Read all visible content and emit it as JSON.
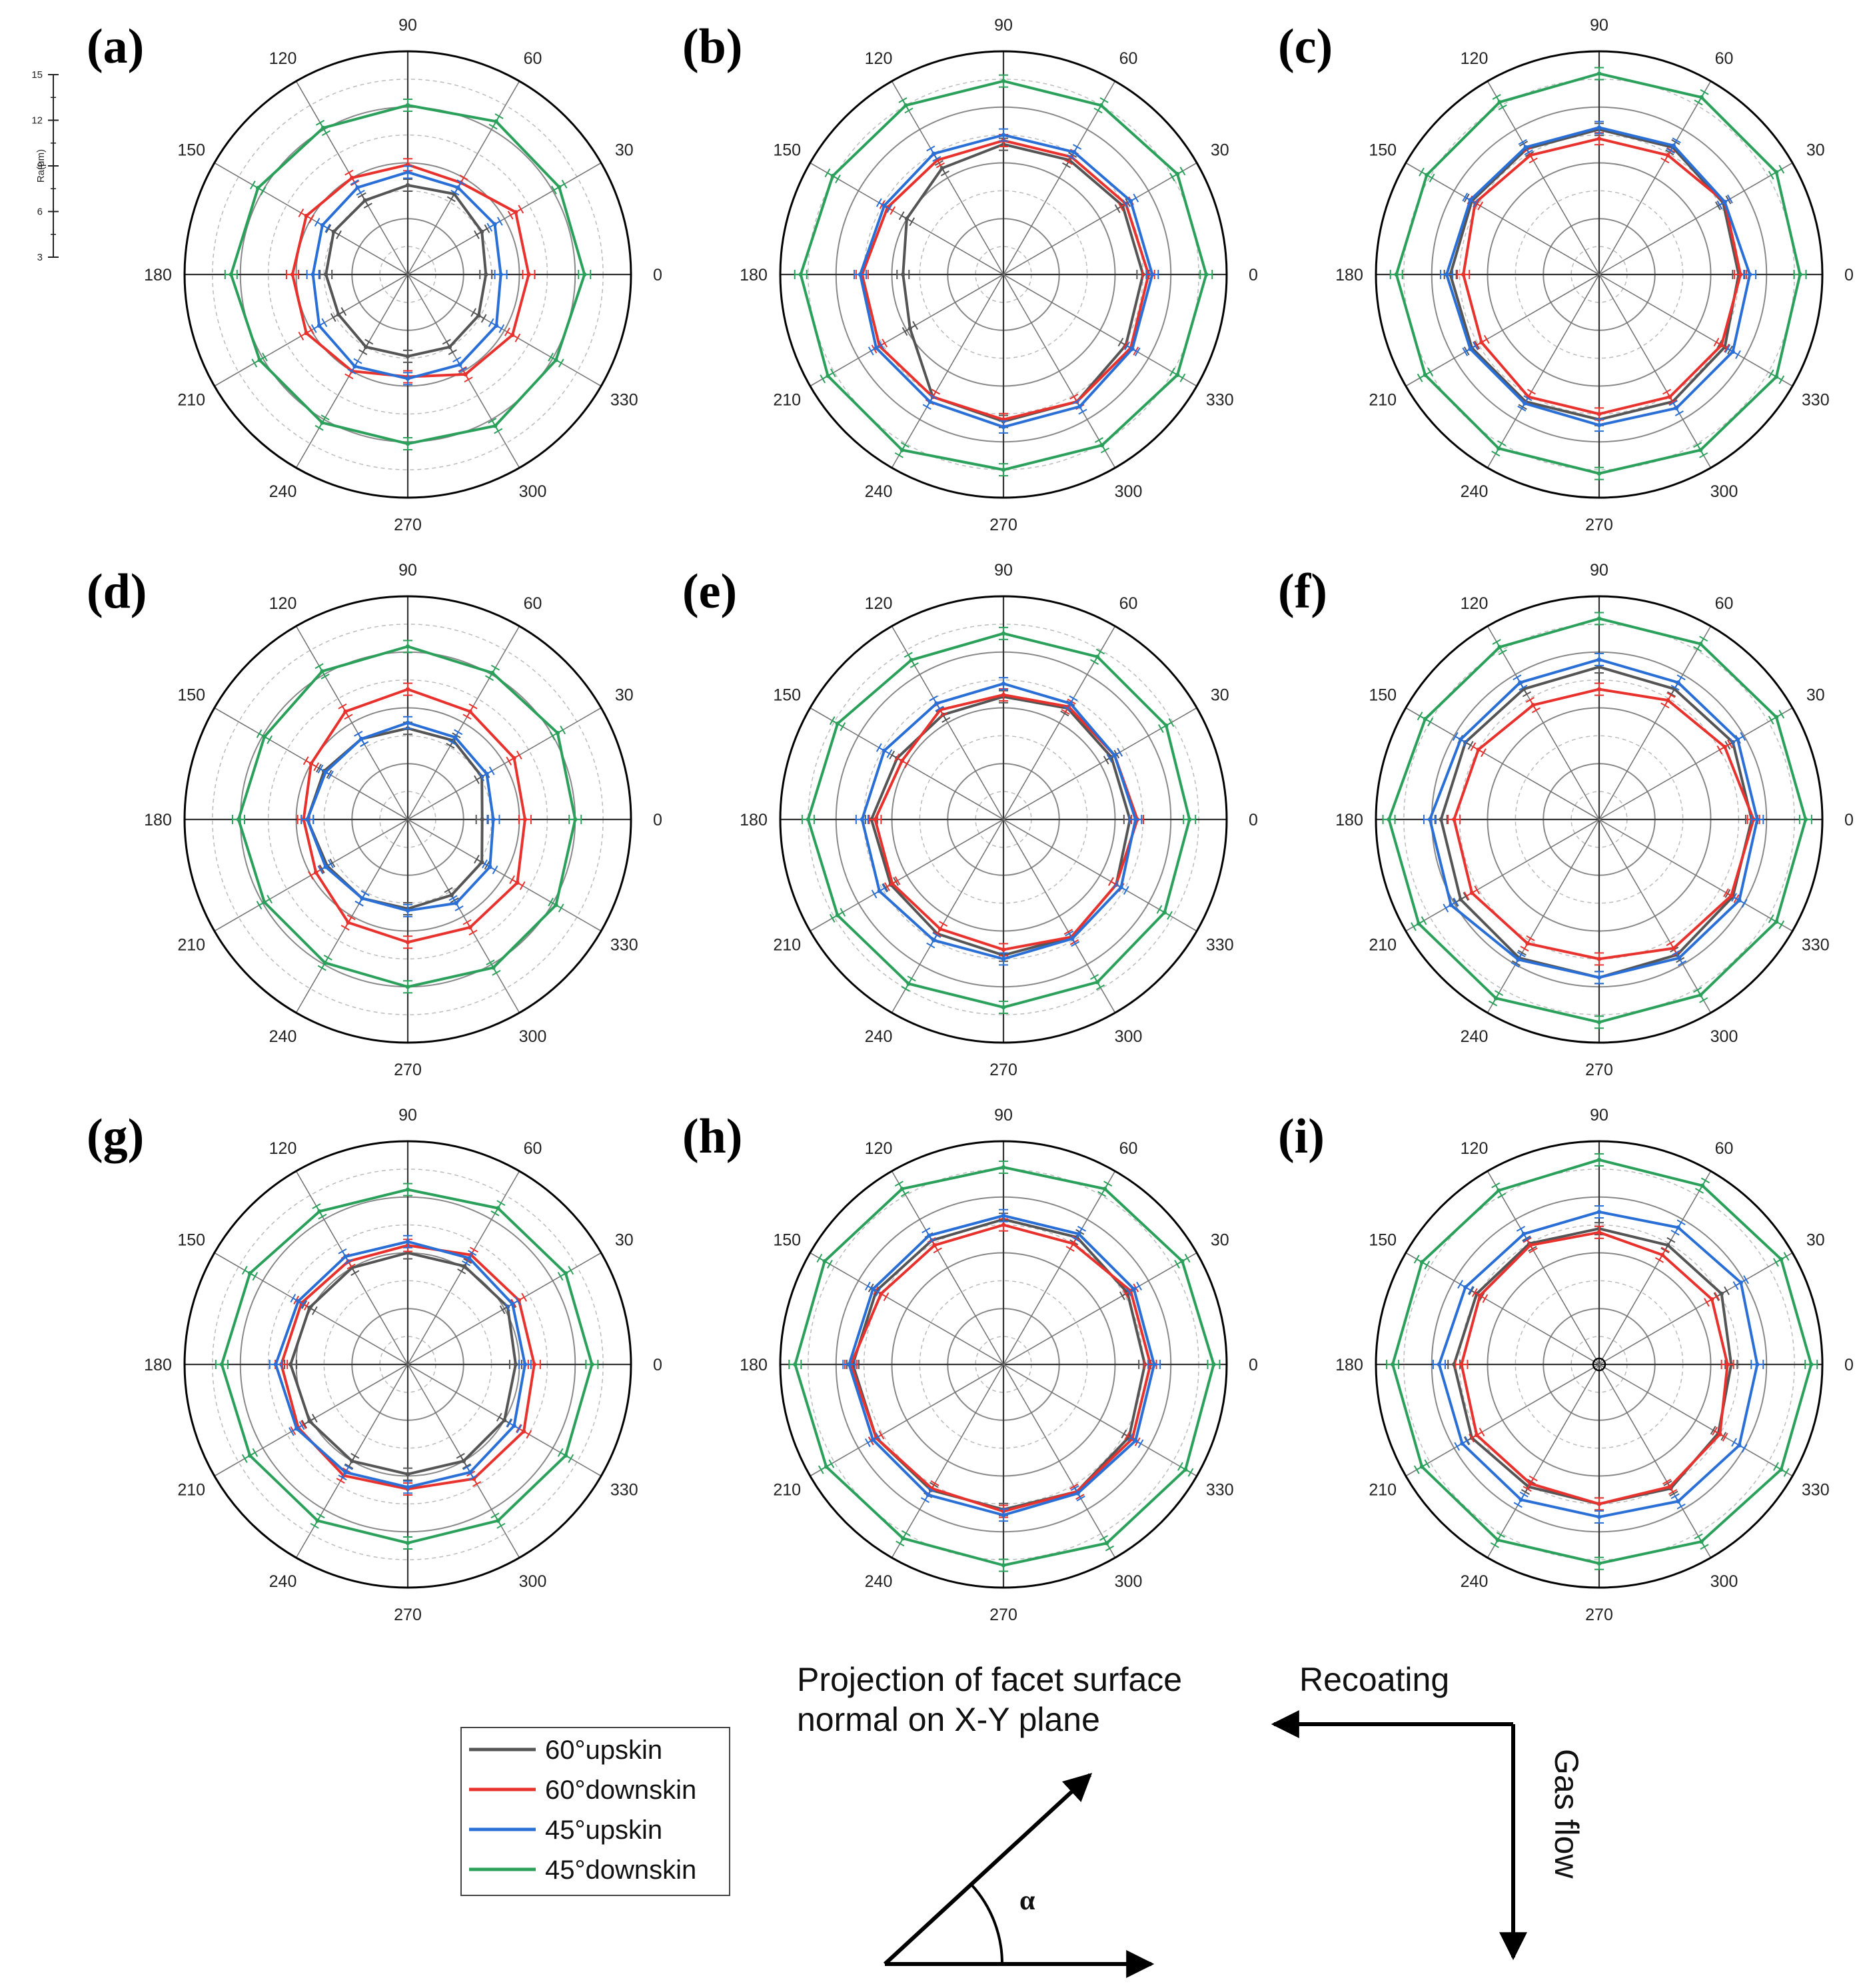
{
  "chart_data": {
    "type": "polar-line",
    "radial_axis": {
      "label": "Ra(μm)",
      "ticks": [
        3,
        6,
        9,
        12,
        15
      ],
      "range": [
        3,
        15
      ]
    },
    "angular_axis": {
      "ticks": [
        0,
        30,
        60,
        90,
        120,
        150,
        180,
        210,
        240,
        270,
        300,
        330
      ]
    },
    "angles": [
      0,
      30,
      60,
      90,
      120,
      150,
      180,
      210,
      240,
      270,
      300,
      330
    ],
    "legend": {
      "placement": "bottom-left",
      "entries": [
        {
          "label": "60°upskin",
          "color": "#555555"
        },
        {
          "label": "60°downskin",
          "color": "#e8322e"
        },
        {
          "label": "45°upskin",
          "color": "#2a6fd6"
        },
        {
          "label": "45°downskin",
          "color": "#2aa05a"
        }
      ]
    },
    "panels": [
      {
        "label": "(a)",
        "series": [
          {
            "name": "60°upskin",
            "values": [
              7.2,
              7.6,
              8.0,
              7.8,
              7.6,
              7.6,
              7.4,
              7.3,
              7.5,
              7.4,
              7.5,
              7.4
            ]
          },
          {
            "name": "60°downskin",
            "values": [
              9.5,
              9.7,
              8.7,
              8.9,
              9.0,
              9.3,
              9.2,
              9.3,
              9.0,
              8.5,
              9.2,
              9.5
            ]
          },
          {
            "name": "45°upskin",
            "values": [
              8.0,
              8.4,
              8.4,
              8.5,
              8.4,
              8.3,
              8.1,
              8.5,
              8.7,
              8.6,
              8.6,
              8.5
            ]
          },
          {
            "name": "45°downskin",
            "values": [
              12.5,
              12.4,
              12.5,
              12.1,
              12.1,
              12.3,
              12.5,
              12.2,
              12.2,
              12.1,
              12.4,
              12.2
            ]
          }
        ]
      },
      {
        "label": "(b)",
        "series": [
          {
            "name": "60°upskin",
            "values": [
              10.5,
              10.4,
              10.1,
              10.0,
              9.6,
              9.0,
              8.4,
              8.8,
              10.6,
              10.9,
              10.9,
              10.6
            ]
          },
          {
            "name": "60°downskin",
            "values": [
              10.8,
              10.6,
              10.3,
              10.2,
              10.1,
              10.2,
              10.6,
              10.7,
              10.6,
              10.8,
              10.9,
              10.9
            ]
          },
          {
            "name": "45°upskin",
            "values": [
              11.0,
              10.9,
              10.6,
              10.5,
              10.5,
              10.4,
              10.7,
              10.9,
              10.9,
              11.2,
              11.2,
              11.0
            ]
          },
          {
            "name": "45°downskin",
            "values": [
              13.9,
              13.8,
              13.5,
              13.4,
              13.5,
              13.6,
              13.9,
              13.9,
              13.9,
              13.5,
              13.6,
              13.8
            ]
          }
        ]
      },
      {
        "label": "(c)",
        "series": [
          {
            "name": "60°upskin",
            "values": [
              10.5,
              10.7,
              10.9,
              10.8,
              10.8,
              10.9,
              11.0,
              10.9,
              10.9,
              10.8,
              10.9,
              10.8
            ]
          },
          {
            "name": "60°downskin",
            "values": [
              10.6,
              10.8,
              10.4,
              10.3,
              10.4,
              10.7,
              10.3,
              10.3,
              10.6,
              10.5,
              10.6,
              10.6
            ]
          },
          {
            "name": "45°upskin",
            "values": [
              11.1,
              10.8,
              11.0,
              10.9,
              10.9,
              11.0,
              11.2,
              11.0,
              11.0,
              11.1,
              11.3,
              11.3
            ]
          },
          {
            "name": "45°downskin",
            "values": [
              13.8,
              14.0,
              14.0,
              13.8,
              13.7,
              13.7,
              13.9,
              13.8,
              13.8,
              13.7,
              13.9,
              14.0
            ]
          }
        ]
      },
      {
        "label": "(d)",
        "series": [
          {
            "name": "60°upskin",
            "values": [
              7.0,
              7.6,
              7.9,
              7.9,
              8.0,
              8.2,
              8.4,
              8.0,
              7.9,
              7.8,
              7.7,
              7.6
            ]
          },
          {
            "name": "60°downskin",
            "values": [
              9.3,
              9.6,
              9.7,
              10.0,
              9.7,
              9.0,
              8.6,
              8.7,
              9.4,
              9.6,
              9.7,
              9.8
            ]
          },
          {
            "name": "45°upskin",
            "values": [
              7.6,
              7.9,
              8.1,
              8.2,
              8.0,
              8.1,
              8.4,
              8.1,
              7.9,
              7.9,
              8.2,
              8.1
            ]
          },
          {
            "name": "45°downskin",
            "values": [
              12.0,
              12.3,
              12.1,
              12.3,
              12.2,
              11.9,
              12.1,
              11.9,
              11.9,
              12.0,
              12.2,
              12.2
            ]
          }
        ]
      },
      {
        "label": "(e)",
        "series": [
          {
            "name": "60°upskin",
            "values": [
              9.8,
              9.7,
              9.9,
              9.6,
              9.5,
              9.6,
              10.1,
              10.0,
              10.1,
              10.3,
              10.3,
              10.0
            ]
          },
          {
            "name": "60°downskin",
            "values": [
              10.2,
              9.9,
              10.0,
              9.7,
              9.8,
              9.3,
              9.9,
              9.9,
              9.8,
              10.0,
              10.3,
              10.0
            ]
          },
          {
            "name": "45°upskin",
            "values": [
              10.1,
              9.9,
              10.2,
              10.3,
              10.2,
              10.4,
              10.6,
              10.7,
              10.5,
              10.5,
              10.4,
              10.3
            ]
          },
          {
            "name": "45°downskin",
            "values": [
              13.0,
              13.1,
              13.1,
              13.0,
              12.9,
              13.3,
              13.5,
              13.3,
              13.2,
              13.1,
              13.1,
              13.0
            ]
          }
        ]
      },
      {
        "label": "(f)",
        "series": [
          {
            "name": "60°upskin",
            "values": [
              11.2,
              11.3,
              11.1,
              11.2,
              11.1,
              11.3,
              11.5,
              11.6,
              11.6,
              11.5,
              11.4,
              11.3
            ]
          },
          {
            "name": "60°downskin",
            "values": [
              11.3,
              10.8,
              10.4,
              10.0,
              10.1,
              10.5,
              10.8,
              10.9,
              10.7,
              10.5,
              11.0,
              11.2
            ]
          },
          {
            "name": "45°upskin",
            "values": [
              11.5,
              11.6,
              11.5,
              11.6,
              11.5,
              11.6,
              12.1,
              12.2,
              11.7,
              11.5,
              11.6,
              11.7
            ]
          },
          {
            "name": "45°downskin",
            "values": [
              14.1,
              14.0,
              13.9,
              13.8,
              13.7,
              13.8,
              14.3,
              14.2,
              14.1,
              13.9,
              13.9,
              14.0
            ]
          }
        ]
      },
      {
        "label": "(g)",
        "series": [
          {
            "name": "60°upskin",
            "values": [
              8.8,
              9.2,
              9.1,
              9.0,
              9.0,
              9.1,
              9.3,
              9.1,
              9.0,
              8.9,
              9.0,
              9.0
            ]
          },
          {
            "name": "60°downskin",
            "values": [
              9.8,
              9.9,
              9.8,
              9.4,
              9.4,
              9.6,
              9.8,
              9.8,
              9.9,
              9.7,
              10.1,
              10.2
            ]
          },
          {
            "name": "45°upskin",
            "values": [
              9.3,
              9.5,
              9.6,
              9.6,
              9.7,
              9.8,
              10.1,
              9.9,
              9.7,
              9.6,
              9.7,
              9.6
            ]
          },
          {
            "name": "45°downskin",
            "values": [
              12.9,
              12.8,
              12.7,
              12.4,
              12.5,
              12.8,
              13.0,
              12.8,
              12.7,
              12.6,
              12.7,
              12.8
            ]
          }
        ]
      },
      {
        "label": "(h)",
        "series": [
          {
            "name": "60°upskin",
            "values": [
              10.6,
              10.7,
              10.9,
              10.8,
              10.7,
              10.9,
              11.1,
              10.9,
              10.8,
              10.8,
              10.9,
              10.8
            ]
          },
          {
            "name": "60°downskin",
            "values": [
              10.9,
              10.9,
              10.5,
              10.5,
              10.4,
              10.6,
              11.2,
              10.9,
              10.7,
              10.9,
              10.9,
              11.0
            ]
          },
          {
            "name": "45°upskin",
            "values": [
              11.1,
              11.1,
              11.1,
              11.0,
              11.0,
              11.1,
              11.3,
              11.1,
              11.1,
              11.1,
              11.0,
              11.2
            ]
          },
          {
            "name": "45°downskin",
            "values": [
              14.3,
              14.1,
              13.9,
              13.6,
              13.9,
              14.1,
              14.2,
              14.0,
              13.8,
              13.8,
              14.1,
              14.3
            ]
          }
        ]
      },
      {
        "label": "(i)",
        "series": [
          {
            "name": "60°upskin",
            "values": [
              10.1,
              10.6,
              10.4,
              10.3,
              10.5,
              10.6,
              10.8,
              10.9,
              10.6,
              10.5,
              10.7,
              10.4
            ]
          },
          {
            "name": "60°downskin",
            "values": [
              9.9,
              10.0,
              9.8,
              10.1,
              10.4,
              10.4,
              10.4,
              10.6,
              10.4,
              10.5,
              10.6,
              10.5
            ]
          },
          {
            "name": "45°upskin",
            "values": [
              11.5,
              11.8,
              11.5,
              11.2,
              11.1,
              11.3,
              11.6,
              11.5,
              11.4,
              11.2,
              11.5,
              11.7
            ]
          },
          {
            "name": "45°downskin",
            "values": [
              14.4,
              14.3,
              14.1,
              14.0,
              13.8,
              14.0,
              14.1,
              14.0,
              13.9,
              13.7,
              14.0,
              14.3
            ]
          }
        ]
      }
    ]
  },
  "annotations": {
    "projection_line1": "Projection of facet surface",
    "projection_line2": "normal on X-Y plane",
    "alpha": "α",
    "recoating": "Recoating",
    "gas_flow": "Gas flow"
  },
  "colors": {
    "axis": "#000000",
    "grid_spoke": "#777777",
    "grid_major": "#888888",
    "grid_minor": "#bbbbbb"
  }
}
